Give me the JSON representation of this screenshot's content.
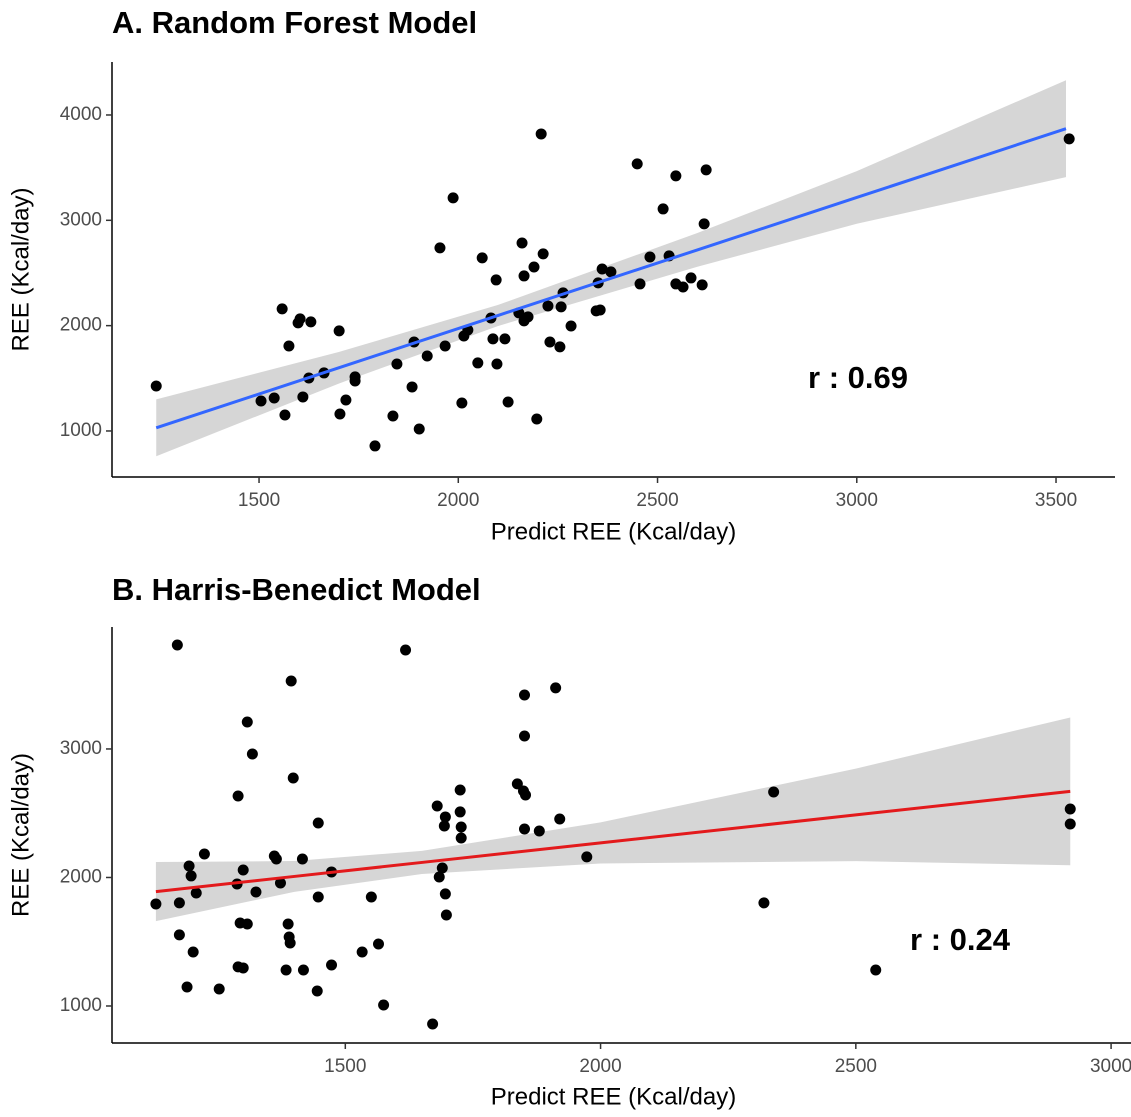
{
  "chart_data": [
    {
      "type": "scatter",
      "title": "A. Random Forest Model",
      "x_label": "Predict REE (Kcal/day)",
      "y_label": "REE (Kcal/day)",
      "annotation": "r : 0.69",
      "color": "#000000",
      "x": [
        1242,
        1505,
        1538,
        1558,
        1565,
        1575,
        1598,
        1603,
        1610,
        1625,
        1630,
        1663,
        1701,
        1703,
        1718,
        1741,
        1741,
        1791,
        1836,
        1846,
        1884,
        1889,
        1902,
        1922,
        1967,
        1987,
        1954,
        2009,
        2014,
        2024,
        2049,
        2060,
        2082,
        2087,
        2095,
        2097,
        2117,
        2125,
        2152,
        2160,
        2165,
        2165,
        2175,
        2190,
        2197,
        2208,
        2213,
        2225,
        2230,
        2258,
        2255,
        2263,
        2283,
        2346,
        2351,
        2356,
        2361,
        2383,
        2449,
        2456,
        2481,
        2514,
        2529,
        2546,
        2546,
        2564,
        2584,
        2612,
        2617,
        2622,
        3533
      ],
      "values": [
        1427,
        1285,
        1313,
        2159,
        1152,
        1807,
        2026,
        2064,
        1323,
        1503,
        2036,
        1551,
        1950,
        1161,
        1294,
        1513,
        1475,
        858,
        1142,
        1636,
        1418,
        1845,
        1019,
        1712,
        1807,
        3213,
        2738,
        1266,
        1902,
        1959,
        1646,
        2643,
        2073,
        1874,
        2434,
        1636,
        1874,
        1275,
        2121,
        2785,
        2045,
        2472,
        2083,
        2557,
        1114,
        3820,
        2681,
        2187,
        1845,
        2178,
        1798,
        2311,
        1997,
        2140,
        2406,
        2149,
        2538,
        2510,
        3536,
        2396,
        2652,
        3108,
        2662,
        3422,
        2396,
        2367,
        2453,
        2387,
        2966,
        3479,
        3773
      ],
      "fit": {
        "color": "#3366ff",
        "band_color": "#cccccc",
        "x": [
          1242,
          1700,
          2100,
          2600,
          3000,
          3525
        ],
        "values": [
          1030,
          1600,
          2097,
          2719,
          3217,
          3870
        ],
        "band_lower": [
          760,
          1450,
          1997,
          2559,
          2967,
          3410
        ],
        "band_upper": [
          1300,
          1750,
          2197,
          2879,
          3467,
          4330
        ]
      },
      "xlim": [
        1131,
        3648
      ],
      "xticks": [
        1500,
        2000,
        2500,
        3000,
        3500
      ],
      "ylim": [
        563,
        4503
      ],
      "yticks": [
        1000,
        2000,
        3000,
        4000
      ]
    },
    {
      "type": "scatter",
      "title": "B. Harris-Benedict Model",
      "x_label": "Predict REE (Kcal/day)",
      "y_label": "REE (Kcal/day)",
      "annotation": "r : 0.24",
      "color": "#000000",
      "x": [
        1129,
        1171,
        1175,
        1175,
        1190,
        1194,
        1198,
        1202,
        1208,
        1224,
        1253,
        1288,
        1290,
        1290,
        1300,
        1294,
        1300,
        1308,
        1308,
        1318,
        1325,
        1361,
        1365,
        1373,
        1384,
        1388,
        1390,
        1392,
        1394,
        1398,
        1416,
        1418,
        1445,
        1447,
        1447,
        1473,
        1473,
        1533,
        1551,
        1565,
        1575,
        1618,
        1671,
        1680,
        1684,
        1690,
        1694,
        1696,
        1696,
        1698,
        1725,
        1725,
        1727,
        1727,
        1837,
        1851,
        1851,
        1849,
        1853,
        1851,
        1880,
        1912,
        1920,
        1973,
        2320,
        2339,
        2539,
        2920,
        2920
      ],
      "values": [
        1794,
        3809,
        1802,
        1553,
        1148,
        2089,
        2012,
        1420,
        1879,
        2183,
        1132,
        1949,
        1304,
        2634,
        1296,
        1646,
        2058,
        1638,
        3210,
        2961,
        1887,
        2167,
        2144,
        1957,
        1280,
        1638,
        1537,
        1490,
        3529,
        2774,
        2144,
        1280,
        1117,
        1848,
        2424,
        2043,
        1319,
        1420,
        1848,
        1482,
        1008,
        3770,
        860,
        2556,
        2004,
        2074,
        2401,
        2471,
        1872,
        1708,
        2681,
        2510,
        2393,
        2307,
        2728,
        3420,
        3101,
        2673,
        2642,
        2377,
        2362,
        3475,
        2455,
        2160,
        1802,
        2665,
        1280,
        2533,
        2416
      ],
      "fit": {
        "color": "#e31a1c",
        "band_color": "#cccccc",
        "x": [
          1129,
          1400,
          1650,
          2000,
          2500,
          2920
        ],
        "values": [
          1890,
          2008,
          2117,
          2269,
          2487,
          2670
        ],
        "band_lower": [
          1660,
          1888,
          2027,
          2109,
          2127,
          2095
        ],
        "band_upper": [
          2120,
          2128,
          2207,
          2429,
          2847,
          3245
        ]
      },
      "xlim": [
        1043,
        3039
      ],
      "xticks": [
        1500,
        2000,
        2500,
        3000
      ],
      "ylim": [
        712,
        3949
      ],
      "yticks": [
        1000,
        2000,
        3000
      ]
    }
  ]
}
